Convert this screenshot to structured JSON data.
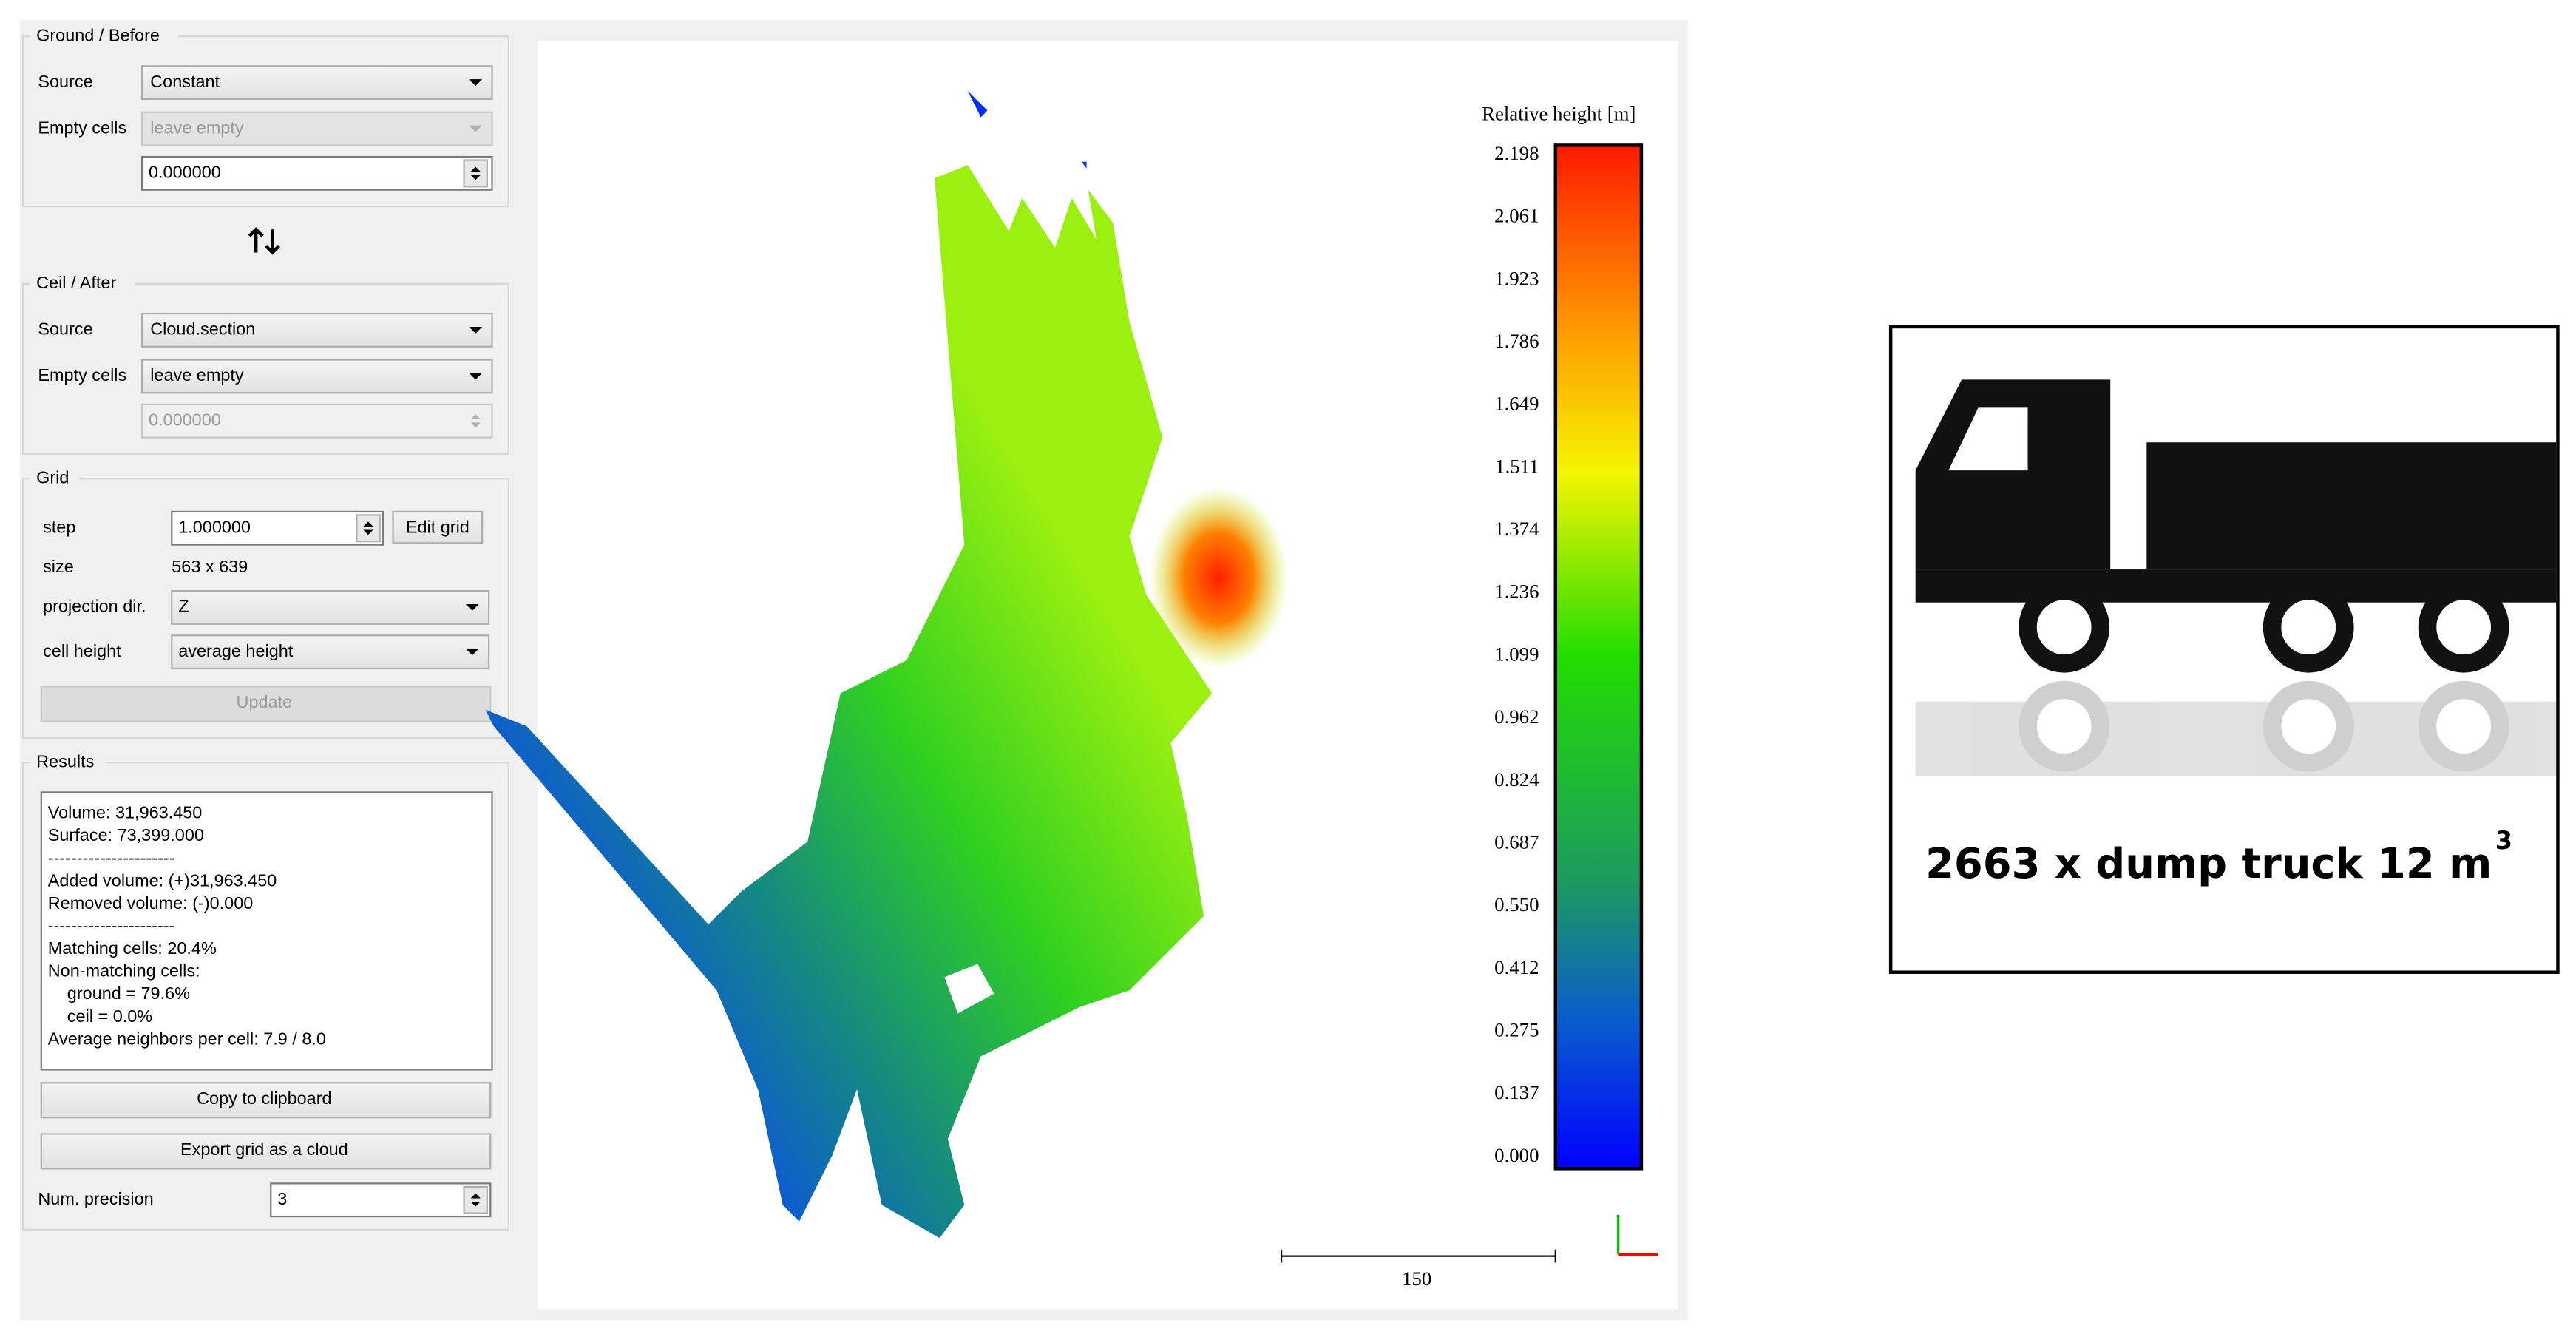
{
  "ground_before": {
    "title": "Ground / Before",
    "source_label": "Source",
    "source": "Constant",
    "empty_cells_label": "Empty cells",
    "empty_cells": "leave empty",
    "value": "0.000000"
  },
  "ceil_after": {
    "title": "Ceil / After",
    "source_label": "Source",
    "source": "Cloud.section",
    "empty_cells_label": "Empty cells",
    "empty_cells": "leave empty",
    "value": "0.000000"
  },
  "grid": {
    "title": "Grid",
    "step_label": "step",
    "step": "1.000000",
    "edit_button": "Edit grid",
    "size_label": "size",
    "size": "563 x 639",
    "projection_label": "projection dir.",
    "projection": "Z",
    "cell_height_label": "cell height",
    "cell_height": "average height",
    "update_button": "Update"
  },
  "results": {
    "title": "Results",
    "lines": [
      "Volume: 31,963.450",
      "Surface: 73,399.000",
      "----------------------",
      "Added volume: (+)31,963.450",
      "Removed volume: (-)0.000",
      "----------------------",
      "Matching cells: 20.4%",
      "Non-matching cells:",
      "    ground = 79.6%",
      "    ceil = 0.0%",
      "Average neighbors per cell: 7.9 / 8.0"
    ],
    "copy_button": "Copy to clipboard",
    "export_button": "Export grid as a cloud",
    "precision_label": "Num. precision",
    "precision": "3"
  },
  "view": {
    "colorbar_title": "Relative height [m]",
    "colorbar_ticks": [
      "2.198",
      "2.061",
      "1.923",
      "1.786",
      "1.649",
      "1.511",
      "1.374",
      "1.236",
      "1.099",
      "0.962",
      "0.824",
      "0.687",
      "0.550",
      "0.412",
      "0.275",
      "0.137",
      "0.000"
    ],
    "scale_label": "150"
  },
  "card": {
    "text": "2663 x dump truck 12 m",
    "exponent": "3"
  }
}
